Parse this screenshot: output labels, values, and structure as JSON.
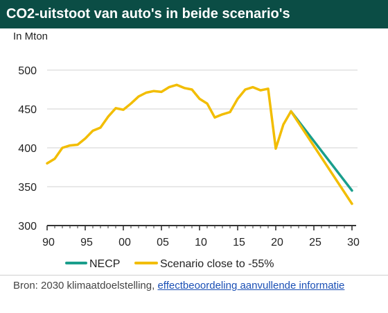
{
  "title": "CO2-uitstoot van auto's in beide scenario's",
  "unit_label": "In Mton",
  "source": {
    "prefix": "Bron: 2030 klimaatdoelstelling, ",
    "link_text": "effectbeoordeling aanvullende informatie"
  },
  "colors": {
    "title_bg": "#0b4d45",
    "necp": "#1a9e8c",
    "scenario": "#f2bd00",
    "grid": "#d0d0d0",
    "axis": "#333333"
  },
  "chart_data": {
    "type": "line",
    "ylim": [
      300,
      500
    ],
    "yticks": [
      300,
      350,
      400,
      450,
      500
    ],
    "xlim": [
      1990,
      2030
    ],
    "xticks": [
      1990,
      1995,
      2000,
      2005,
      2010,
      2015,
      2020,
      2025,
      2030
    ],
    "xtick_labels": [
      "90",
      "95",
      "00",
      "05",
      "10",
      "15",
      "20",
      "25",
      "30"
    ],
    "grid": "horizontal",
    "legend_position": "bottom",
    "series": [
      {
        "name": "NECP",
        "color": "#1a9e8c",
        "x": [
          2022,
          2030
        ],
        "y": [
          447,
          345
        ]
      },
      {
        "name": "Scenario close to -55%",
        "color": "#f2bd00",
        "x": [
          1990,
          1991,
          1992,
          1993,
          1994,
          1995,
          1996,
          1997,
          1998,
          1999,
          2000,
          2001,
          2002,
          2003,
          2004,
          2005,
          2006,
          2007,
          2008,
          2009,
          2010,
          2011,
          2012,
          2013,
          2014,
          2015,
          2016,
          2017,
          2018,
          2019,
          2020,
          2021,
          2022,
          2030
        ],
        "y": [
          380,
          386,
          400,
          403,
          404,
          412,
          422,
          426,
          440,
          451,
          449,
          457,
          466,
          471,
          473,
          472,
          478,
          481,
          477,
          475,
          463,
          457,
          439,
          443,
          446,
          463,
          475,
          478,
          474,
          476,
          399,
          430,
          447,
          328
        ]
      }
    ]
  }
}
